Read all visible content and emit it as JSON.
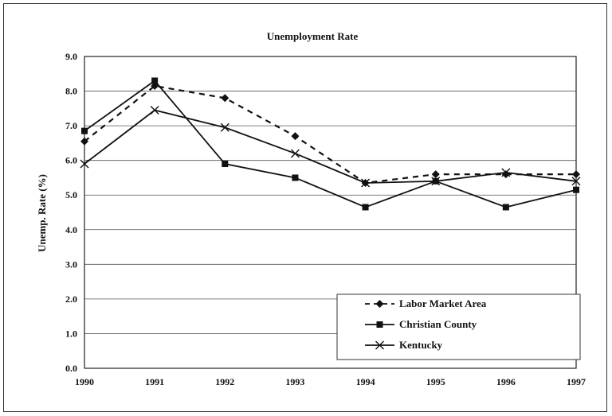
{
  "chart_data": {
    "type": "line",
    "title": "Unemployment Rate",
    "xlabel": "",
    "ylabel": "Unemp. Rate (%)",
    "x": [
      "1990",
      "1991",
      "1992",
      "1993",
      "1994",
      "1995",
      "1996",
      "1997"
    ],
    "ylim": [
      0,
      9
    ],
    "yticks": [
      "0.0",
      "1.0",
      "2.0",
      "3.0",
      "4.0",
      "5.0",
      "6.0",
      "7.0",
      "8.0",
      "9.0"
    ],
    "grid": true,
    "legend_position": "bottom-right",
    "series": [
      {
        "name": "Labor Market Area",
        "marker": "diamond",
        "dash": "dashed",
        "color": "#111111",
        "values": [
          6.55,
          8.15,
          7.8,
          6.7,
          5.35,
          5.6,
          5.6,
          5.6
        ]
      },
      {
        "name": "Christian County",
        "marker": "square",
        "dash": "solid",
        "color": "#111111",
        "values": [
          6.85,
          8.3,
          5.9,
          5.5,
          4.65,
          5.4,
          4.65,
          5.15
        ]
      },
      {
        "name": "Kentucky",
        "marker": "x",
        "dash": "solid",
        "color": "#111111",
        "values": [
          5.9,
          7.45,
          6.95,
          6.2,
          5.35,
          5.4,
          5.65,
          5.4
        ]
      }
    ]
  }
}
